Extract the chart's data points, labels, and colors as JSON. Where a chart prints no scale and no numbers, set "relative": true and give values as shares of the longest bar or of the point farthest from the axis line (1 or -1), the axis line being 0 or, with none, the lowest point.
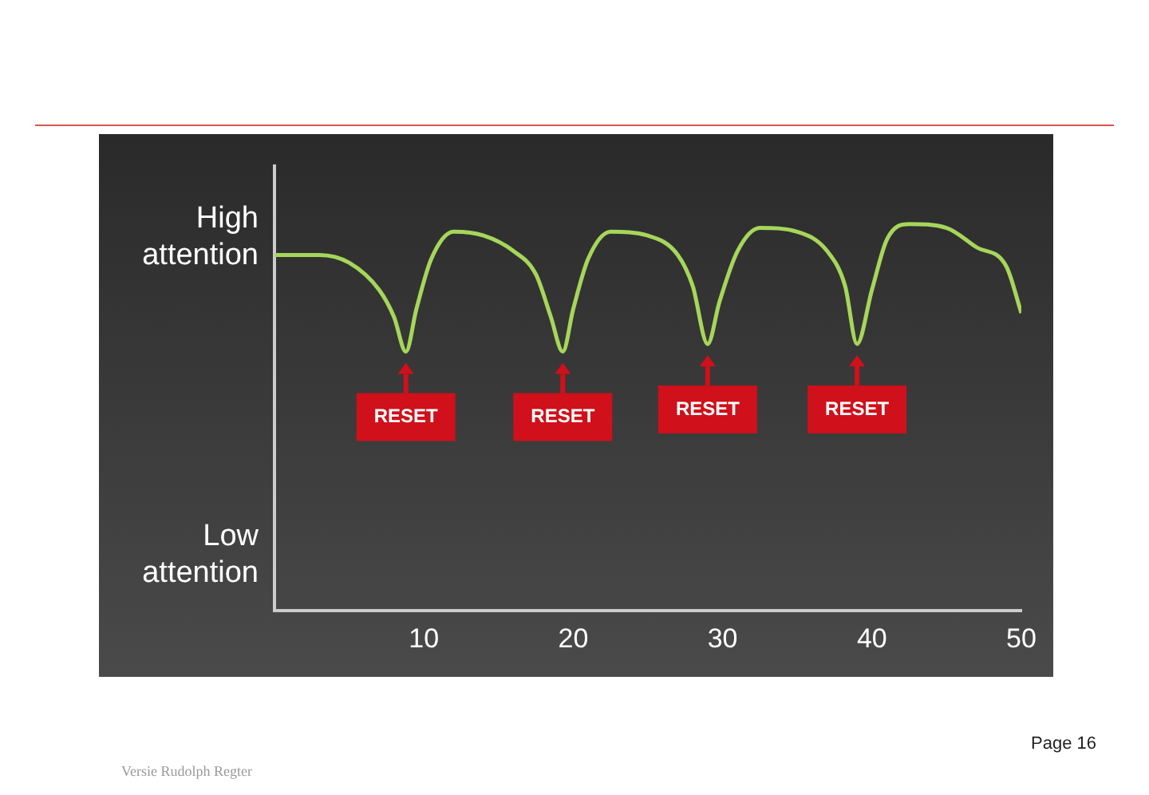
{
  "chart_data": {
    "type": "line",
    "x": [
      0,
      3,
      5,
      7,
      8,
      8.8,
      9.5,
      10.5,
      12,
      14,
      16,
      17.5,
      18.5,
      19.3,
      20,
      21,
      22.5,
      25,
      27,
      28,
      29,
      29.8,
      31,
      32.5,
      35,
      37,
      38.2,
      39,
      40,
      41,
      42.5,
      45,
      47,
      49,
      50
    ],
    "series": [
      {
        "color": "#a6d65a",
        "values": [
          0.92,
          0.92,
          0.9,
          0.83,
          0.76,
          0.67,
          0.78,
          0.91,
          0.98,
          0.97,
          0.93,
          0.87,
          0.76,
          0.67,
          0.78,
          0.91,
          0.98,
          0.97,
          0.92,
          0.84,
          0.69,
          0.8,
          0.93,
          0.99,
          0.98,
          0.93,
          0.84,
          0.69,
          0.83,
          0.96,
          1,
          0.99,
          0.94,
          0.89,
          0.77
        ]
      }
    ],
    "xlim": [
      0,
      50
    ],
    "xticks": [
      10,
      20,
      30,
      40,
      50
    ],
    "relative": true,
    "grid": false,
    "legend": false,
    "marker": "none",
    "line_style": "solid",
    "annotations": [
      {
        "text": "RESET",
        "x": 8.8,
        "y": 0.67
      },
      {
        "text": "RESET",
        "x": 19.3,
        "y": 0.67
      },
      {
        "text": "RESET",
        "x": 29,
        "y": 0.69
      },
      {
        "text": "RESET",
        "x": 39,
        "y": 0.69
      },
      "High attention",
      "Low attention",
      "Versie Rudolph Regter",
      "Page 16"
    ]
  }
}
